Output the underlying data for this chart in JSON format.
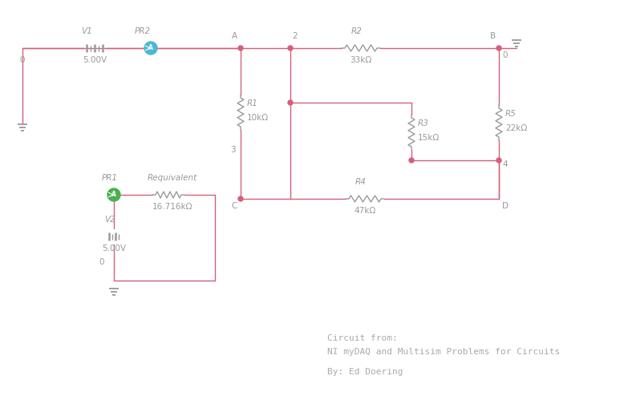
{
  "bg_color": "#ffffff",
  "wire_color": "#d4607a",
  "component_color": "#999999",
  "text_color": "#999999",
  "node_color": "#d4607a",
  "ammeter_color_pr2": "#4ab8d8",
  "ammeter_color_pr1": "#4caf50",
  "fig_width": 7.78,
  "fig_height": 5.09,
  "dpi": 100,
  "annotations": {
    "circuit_from": "Circuit from:",
    "ni_text": "NI myDAQ and Multisim Problems for Circuits",
    "by_text": "By: Ed Doering"
  }
}
